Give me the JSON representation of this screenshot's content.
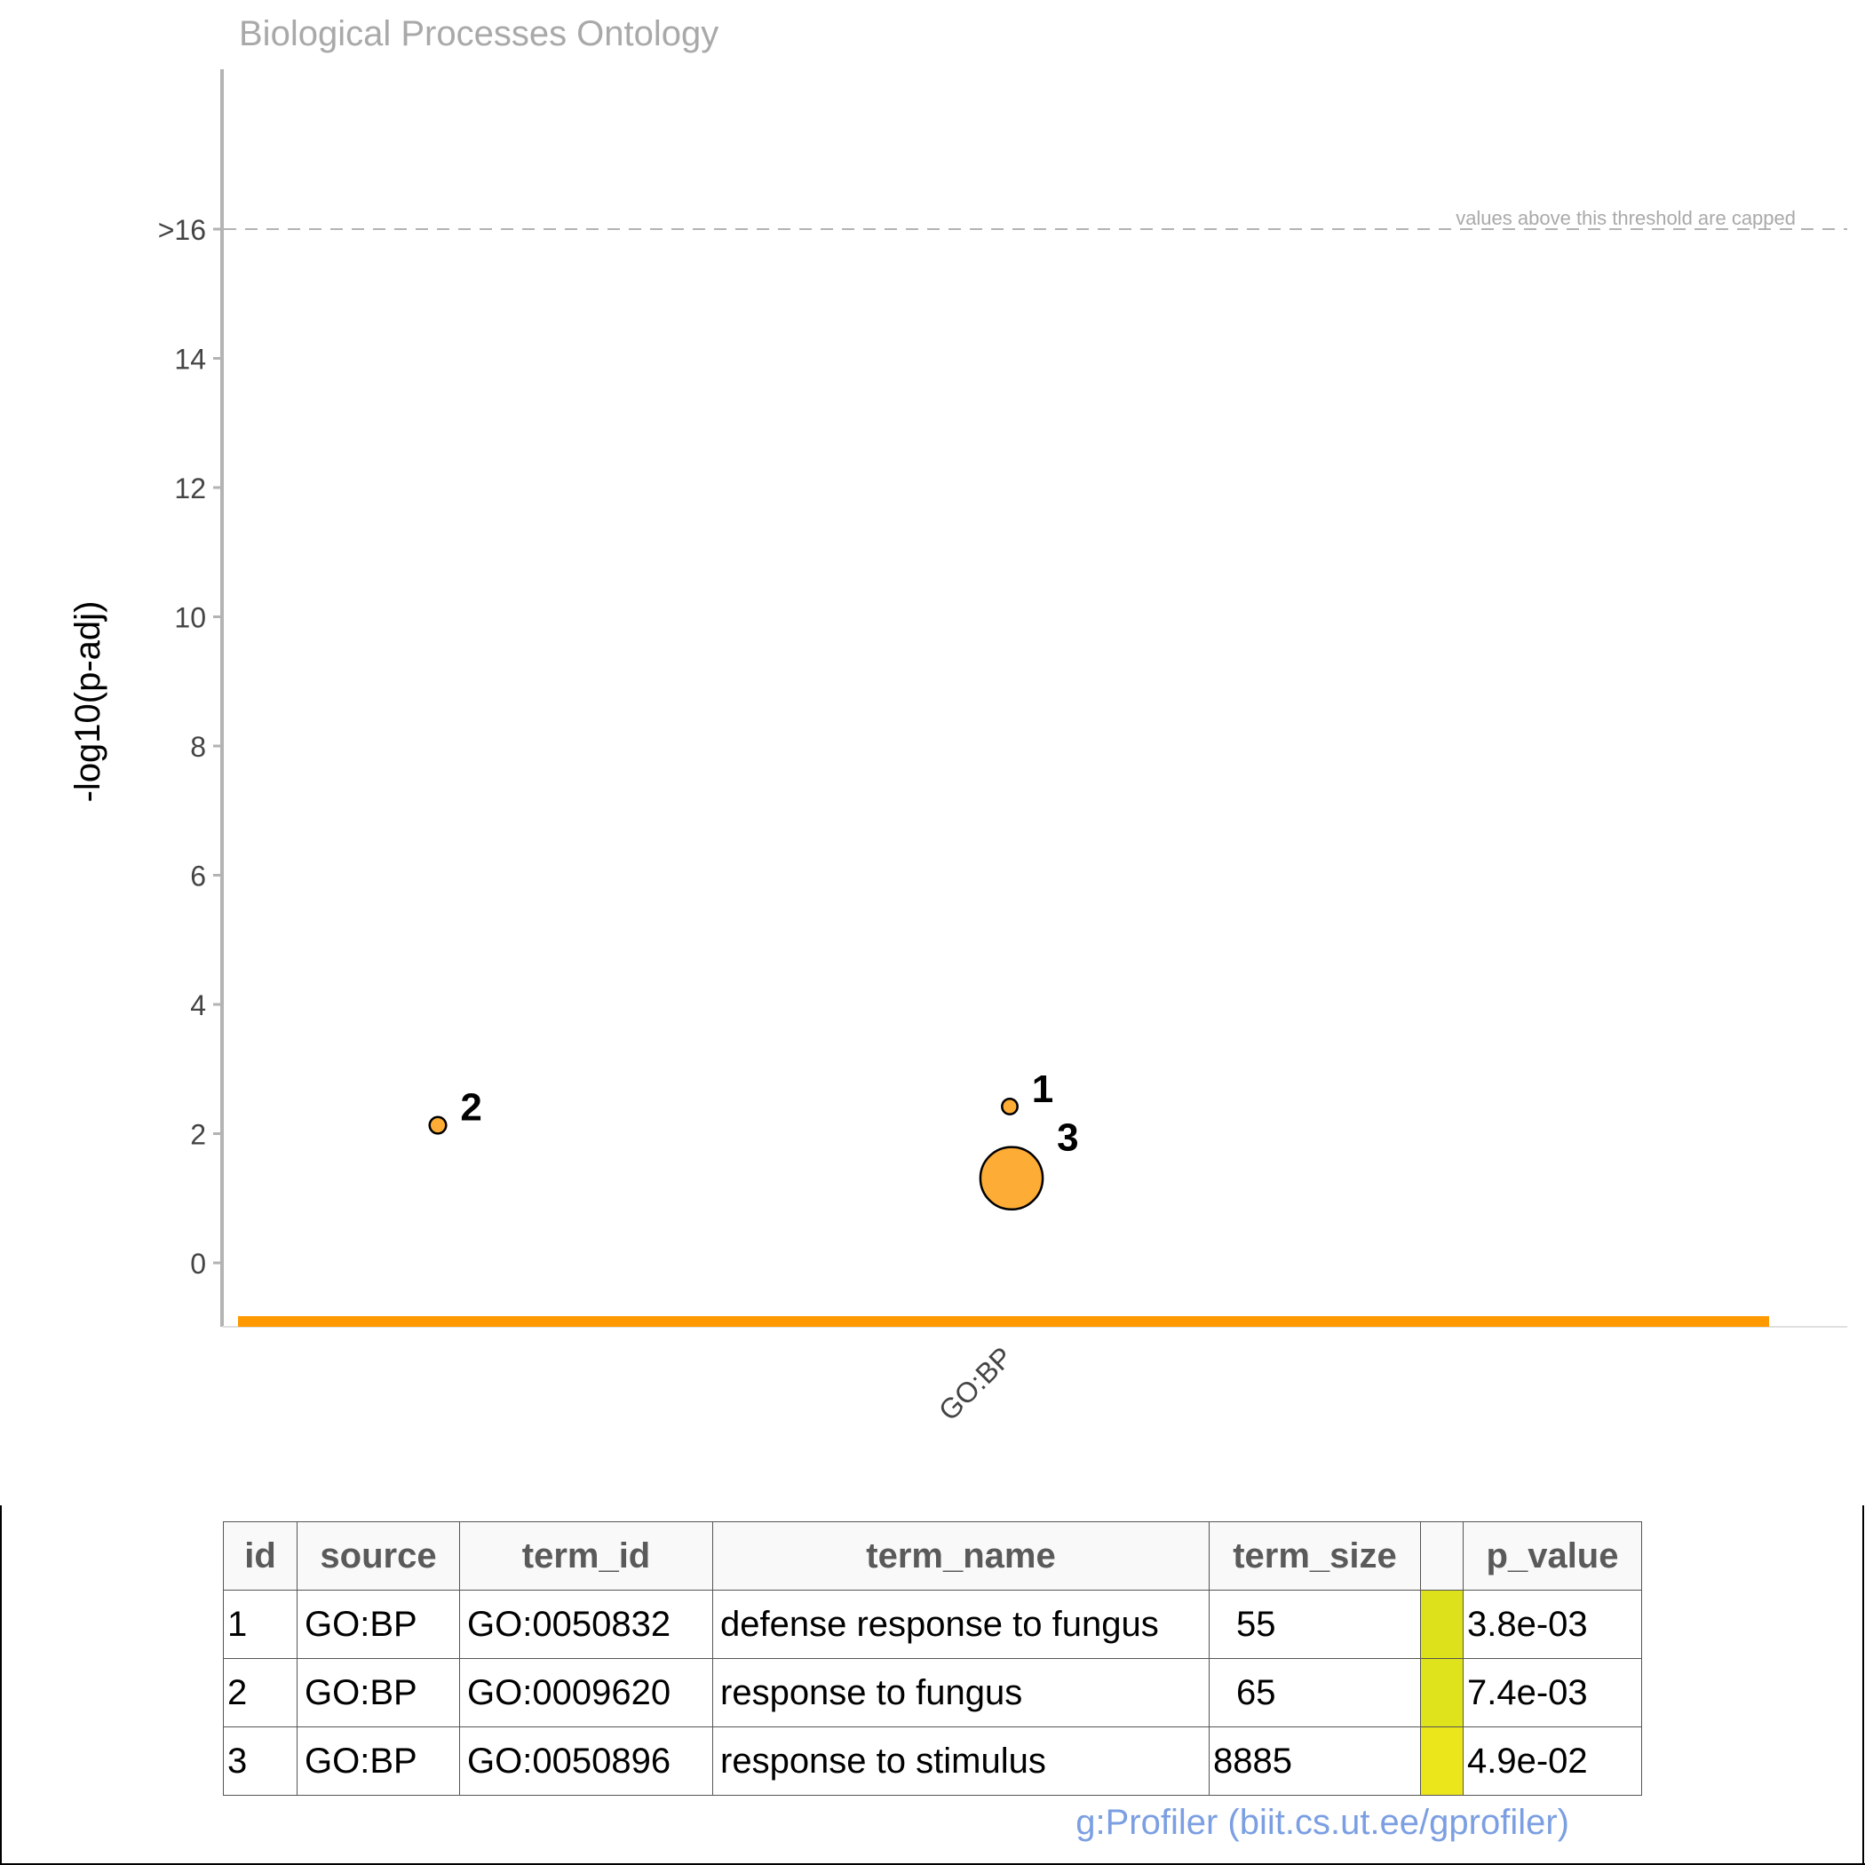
{
  "chart_data": {
    "type": "scatter",
    "title": "Biological Processes Ontology",
    "ylabel": "-log10(p-adj)",
    "xlabel": "",
    "ylim": [
      -1,
      19
    ],
    "yticks": [
      {
        "value": 0,
        "label": "0"
      },
      {
        "value": 2,
        "label": "2"
      },
      {
        "value": 4,
        "label": "4"
      },
      {
        "value": 6,
        "label": "6"
      },
      {
        "value": 8,
        "label": "8"
      },
      {
        "value": 10,
        "label": "10"
      },
      {
        "value": 12,
        "label": "12"
      },
      {
        "value": 14,
        "label": "14"
      },
      {
        "value": 16,
        "label": ">16"
      }
    ],
    "x_categories": [
      "GO:BP"
    ],
    "threshold": {
      "value": 16,
      "label": "values above this threshold are capped"
    },
    "points": [
      {
        "id": "1",
        "term_id": "GO:0050832",
        "y": 2.42,
        "term_size": 55
      },
      {
        "id": "2",
        "term_id": "GO:0009620",
        "y": 2.13,
        "term_size": 65
      },
      {
        "id": "3",
        "term_id": "GO:0050896",
        "y": 1.31,
        "term_size": 8885
      }
    ],
    "point_color": "#fdac35",
    "source_bar_color": "#ff9900",
    "grid": false
  },
  "table": {
    "headers": [
      "id",
      "source",
      "term_id",
      "term_name",
      "term_size",
      "",
      "p_value"
    ],
    "rows": [
      {
        "id": "1",
        "source": "GO:BP",
        "term_id": "GO:0050832",
        "term_name": "defense response to fungus",
        "term_size": "55",
        "p_value": "3.8e-03",
        "swatch": "#dde11c"
      },
      {
        "id": "2",
        "source": "GO:BP",
        "term_id": "GO:0009620",
        "term_name": "response to fungus",
        "term_size": "65",
        "p_value": "7.4e-03",
        "swatch": "#dfe31c"
      },
      {
        "id": "3",
        "source": "GO:BP",
        "term_id": "GO:0050896",
        "term_name": "response to stimulus",
        "term_size": "8885",
        "p_value": "4.9e-02",
        "swatch": "#ebe51b"
      }
    ]
  },
  "credit": "g:Profiler (biit.cs.ut.ee/gprofiler)"
}
